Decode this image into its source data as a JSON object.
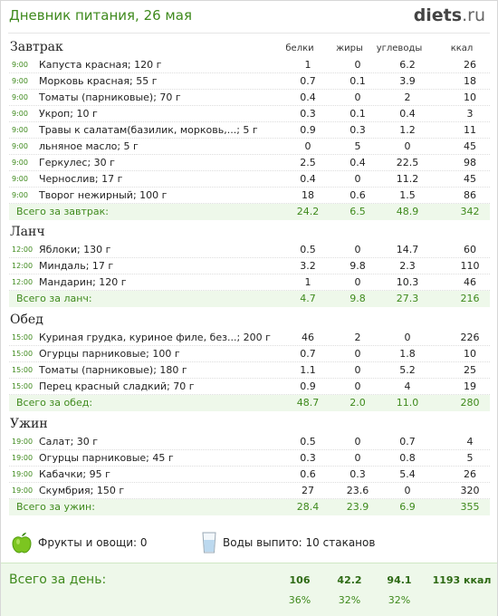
{
  "header": {
    "title": "Дневник питания, 26 мая",
    "logo_main": "diets",
    "logo_tld": ".ru"
  },
  "columns": {
    "protein": "белки",
    "fat": "жиры",
    "carbs": "углеводы",
    "kcal": "ккал"
  },
  "meals": [
    {
      "title": "Завтрак",
      "items": [
        {
          "time": "9:00",
          "food": "Капуста красная; 120 г",
          "b": "1",
          "z": "0",
          "u": "6.2",
          "k": "26"
        },
        {
          "time": "9:00",
          "food": "Морковь красная; 55 г",
          "b": "0.7",
          "z": "0.1",
          "u": "3.9",
          "k": "18"
        },
        {
          "time": "9:00",
          "food": "Томаты (парниковые); 70 г",
          "b": "0.4",
          "z": "0",
          "u": "2",
          "k": "10"
        },
        {
          "time": "9:00",
          "food": "Укроп; 10 г",
          "b": "0.3",
          "z": "0.1",
          "u": "0.4",
          "k": "3"
        },
        {
          "time": "9:00",
          "food": "Травы к салатам(базилик, морковь,...; 5 г",
          "b": "0.9",
          "z": "0.3",
          "u": "1.2",
          "k": "11"
        },
        {
          "time": "9:00",
          "food": "льняное масло; 5 г",
          "b": "0",
          "z": "5",
          "u": "0",
          "k": "45"
        },
        {
          "time": "9:00",
          "food": "Геркулес; 30 г",
          "b": "2.5",
          "z": "0.4",
          "u": "22.5",
          "k": "98"
        },
        {
          "time": "9:00",
          "food": "Чернослив; 17 г",
          "b": "0.4",
          "z": "0",
          "u": "11.2",
          "k": "45"
        },
        {
          "time": "9:00",
          "food": "Творог нежирный; 100 г",
          "b": "18",
          "z": "0.6",
          "u": "1.5",
          "k": "86"
        }
      ],
      "total": {
        "label": "Всего за завтрак:",
        "b": "24.2",
        "z": "6.5",
        "u": "48.9",
        "k": "342"
      }
    },
    {
      "title": "Ланч",
      "items": [
        {
          "time": "12:00",
          "food": "Яблоки; 130 г",
          "b": "0.5",
          "z": "0",
          "u": "14.7",
          "k": "60"
        },
        {
          "time": "12:00",
          "food": "Миндаль; 17 г",
          "b": "3.2",
          "z": "9.8",
          "u": "2.3",
          "k": "110"
        },
        {
          "time": "12:00",
          "food": "Мандарин; 120 г",
          "b": "1",
          "z": "0",
          "u": "10.3",
          "k": "46"
        }
      ],
      "total": {
        "label": "Всего за ланч:",
        "b": "4.7",
        "z": "9.8",
        "u": "27.3",
        "k": "216"
      }
    },
    {
      "title": "Обед",
      "items": [
        {
          "time": "15:00",
          "food": "Куриная грудка, куриное филе, без...; 200 г",
          "b": "46",
          "z": "2",
          "u": "0",
          "k": "226"
        },
        {
          "time": "15:00",
          "food": "Огурцы парниковые; 100 г",
          "b": "0.7",
          "z": "0",
          "u": "1.8",
          "k": "10"
        },
        {
          "time": "15:00",
          "food": "Томаты (парниковые); 180 г",
          "b": "1.1",
          "z": "0",
          "u": "5.2",
          "k": "25"
        },
        {
          "time": "15:00",
          "food": "Перец красный сладкий; 70 г",
          "b": "0.9",
          "z": "0",
          "u": "4",
          "k": "19"
        }
      ],
      "total": {
        "label": "Всего за обед:",
        "b": "48.7",
        "z": "2.0",
        "u": "11.0",
        "k": "280"
      }
    },
    {
      "title": "Ужин",
      "items": [
        {
          "time": "19:00",
          "food": "Салат; 30 г",
          "b": "0.5",
          "z": "0",
          "u": "0.7",
          "k": "4"
        },
        {
          "time": "19:00",
          "food": "Огурцы парниковые; 45 г",
          "b": "0.3",
          "z": "0",
          "u": "0.8",
          "k": "5"
        },
        {
          "time": "19:00",
          "food": "Кабачки; 95 г",
          "b": "0.6",
          "z": "0.3",
          "u": "5.4",
          "k": "26"
        },
        {
          "time": "19:00",
          "food": "Скумбрия; 150 г",
          "b": "27",
          "z": "23.6",
          "u": "0",
          "k": "320"
        }
      ],
      "total": {
        "label": "Всего за ужин:",
        "b": "28.4",
        "z": "23.9",
        "u": "6.9",
        "k": "355"
      }
    }
  ],
  "extras": {
    "fruits": {
      "icon": "green-apple-icon",
      "text": "Фрукты и овощи: 0"
    },
    "water": {
      "icon": "water-glass-icon",
      "text": "Воды выпито: 10 стаканов"
    }
  },
  "day_total": {
    "label": "Всего за день:",
    "b": "106",
    "z": "42.2",
    "u": "94.1",
    "k": "1193 ккал",
    "b_pct": "36%",
    "z_pct": "32%",
    "u_pct": "32%"
  },
  "colors": {
    "accent_green": "#3f8a1d",
    "total_bg": "#eef8ea"
  }
}
